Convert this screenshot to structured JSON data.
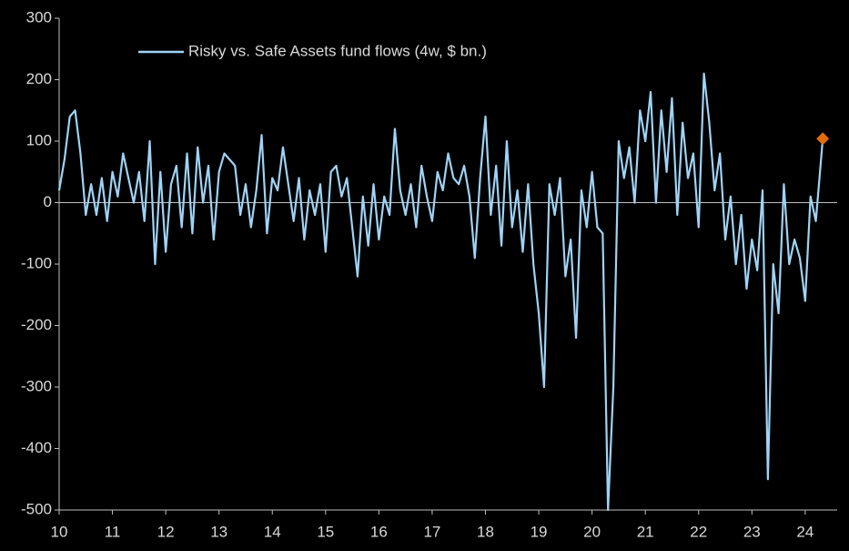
{
  "chart_data": {
    "type": "line",
    "x": [
      10.0,
      10.1,
      10.2,
      10.3,
      10.4,
      10.5,
      10.6,
      10.7,
      10.8,
      10.9,
      11.0,
      11.1,
      11.2,
      11.3,
      11.4,
      11.5,
      11.6,
      11.7,
      11.8,
      11.9,
      12.0,
      12.1,
      12.2,
      12.3,
      12.4,
      12.5,
      12.6,
      12.7,
      12.8,
      12.9,
      13.0,
      13.1,
      13.2,
      13.3,
      13.4,
      13.5,
      13.6,
      13.7,
      13.8,
      13.9,
      14.0,
      14.1,
      14.2,
      14.3,
      14.4,
      14.5,
      14.6,
      14.7,
      14.8,
      14.9,
      15.0,
      15.1,
      15.2,
      15.3,
      15.4,
      15.5,
      15.6,
      15.7,
      15.8,
      15.9,
      16.0,
      16.1,
      16.2,
      16.3,
      16.4,
      16.5,
      16.6,
      16.7,
      16.8,
      16.9,
      17.0,
      17.1,
      17.2,
      17.3,
      17.4,
      17.5,
      17.6,
      17.7,
      17.8,
      17.9,
      18.0,
      18.1,
      18.2,
      18.3,
      18.4,
      18.5,
      18.6,
      18.7,
      18.8,
      18.9,
      19.0,
      19.1,
      19.2,
      19.3,
      19.4,
      19.5,
      19.6,
      19.7,
      19.8,
      19.9,
      20.0,
      20.1,
      20.2,
      20.3,
      20.4,
      20.5,
      20.6,
      20.7,
      20.8,
      20.9,
      21.0,
      21.1,
      21.2,
      21.3,
      21.4,
      21.5,
      21.6,
      21.7,
      21.8,
      21.9,
      22.0,
      22.1,
      22.2,
      22.3,
      22.4,
      22.5,
      22.6,
      22.7,
      22.8,
      22.9,
      23.0,
      23.1,
      23.2,
      23.3,
      23.4,
      23.5,
      23.6,
      23.7,
      23.8,
      23.9,
      24.0,
      24.1,
      24.2,
      24.33
    ],
    "series": [
      {
        "name": "Risky vs. Safe Assets fund flows (4w, $ bn.)",
        "color": "#9fd3f5",
        "values": [
          20,
          70,
          140,
          150,
          80,
          -20,
          30,
          -20,
          40,
          -30,
          50,
          10,
          80,
          40,
          0,
          50,
          -30,
          100,
          -100,
          50,
          -80,
          30,
          60,
          -40,
          80,
          -50,
          90,
          0,
          60,
          -60,
          50,
          80,
          70,
          60,
          -20,
          30,
          -40,
          20,
          110,
          -50,
          40,
          20,
          90,
          30,
          -30,
          40,
          -60,
          20,
          -20,
          30,
          -80,
          50,
          60,
          10,
          40,
          -40,
          -120,
          10,
          -70,
          30,
          -60,
          10,
          -20,
          120,
          20,
          -20,
          30,
          -40,
          60,
          10,
          -30,
          50,
          20,
          80,
          40,
          30,
          60,
          10,
          -90,
          40,
          140,
          -20,
          60,
          -70,
          100,
          -40,
          20,
          -80,
          30,
          -100,
          -180,
          -300,
          30,
          -20,
          40,
          -120,
          -60,
          -220,
          20,
          -40,
          50,
          -40,
          -50,
          -500,
          -300,
          100,
          40,
          90,
          0,
          150,
          100,
          180,
          0,
          150,
          50,
          170,
          -20,
          130,
          40,
          80,
          -40,
          210,
          130,
          20,
          80,
          -60,
          10,
          -100,
          -20,
          -140,
          -60,
          -110,
          20,
          -450,
          -100,
          -180,
          30,
          -100,
          -60,
          -90,
          -160,
          10,
          -30,
          104
        ]
      }
    ],
    "marker": {
      "x": 24.33,
      "value": 104,
      "color": "#e36c0a"
    },
    "xlim": [
      10,
      24.6
    ],
    "xticks": [
      10,
      11,
      12,
      13,
      14,
      15,
      16,
      17,
      18,
      19,
      20,
      21,
      22,
      23,
      24
    ],
    "ylim": [
      -500,
      300
    ],
    "yticks": [
      -500,
      -400,
      -300,
      -200,
      -100,
      0,
      100,
      200,
      300
    ],
    "legend": "top-left"
  }
}
